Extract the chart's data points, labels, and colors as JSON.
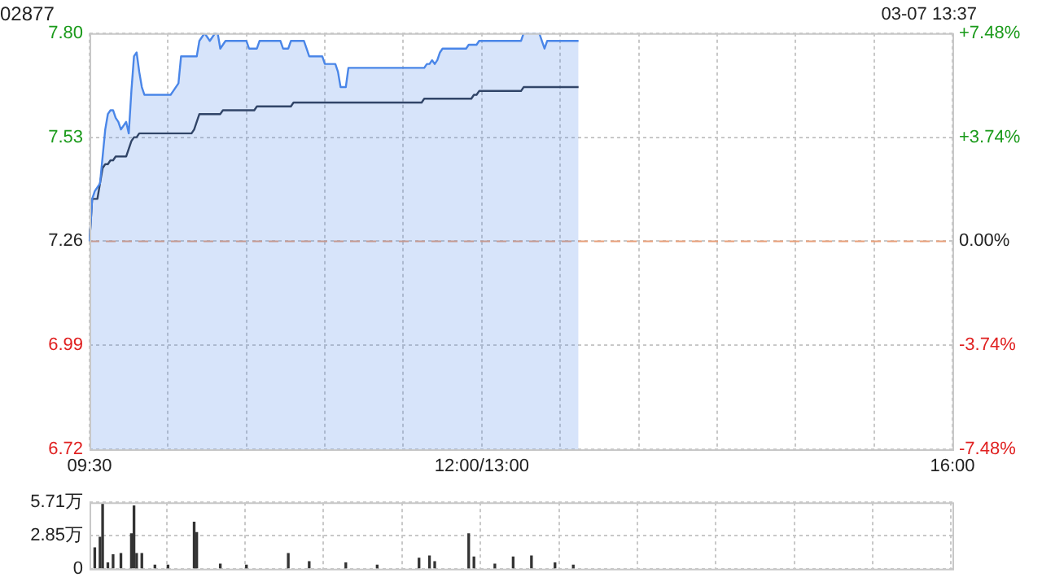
{
  "chart_data": [
    {
      "type": "area",
      "title": "02877",
      "annotations": [
        "03-07 13:37"
      ],
      "categories": [
        "09:30",
        null,
        null,
        null,
        null,
        null,
        null,
        null,
        null,
        null,
        null,
        null,
        null,
        null,
        null,
        null,
        null,
        null,
        null,
        null,
        null,
        null,
        null,
        null,
        null,
        null,
        null,
        null,
        null,
        null,
        null,
        null,
        null,
        null,
        null,
        null,
        null,
        null,
        null,
        null,
        null,
        null,
        null,
        null,
        null,
        null,
        null,
        null,
        null,
        null,
        null,
        null,
        null,
        null,
        null,
        null,
        null,
        null,
        null,
        null,
        null,
        null,
        null,
        null,
        null,
        null,
        null,
        null,
        null,
        null,
        null,
        null,
        null,
        null,
        null,
        null,
        null,
        null,
        null,
        null,
        null,
        null,
        null,
        null,
        null,
        null,
        null,
        null,
        null,
        null,
        null,
        null,
        null,
        null,
        null,
        null,
        null,
        null,
        null,
        null,
        null,
        null,
        null,
        null,
        null,
        null,
        null,
        null,
        null,
        null,
        null,
        null,
        null,
        null,
        null,
        null,
        null,
        null,
        null,
        null,
        null,
        null,
        null,
        null,
        null,
        null,
        null,
        null,
        null,
        null,
        null,
        null,
        null,
        null,
        null,
        null,
        null,
        null,
        null,
        null,
        null,
        null,
        null,
        null,
        null,
        null,
        null,
        null,
        null,
        null,
        "12:00/13:00",
        null,
        null,
        null,
        null,
        null,
        null,
        null,
        null,
        null,
        null,
        null,
        null,
        null,
        null,
        null,
        null,
        null,
        null,
        null,
        null,
        null,
        null,
        null,
        null,
        null,
        null,
        null,
        null,
        null,
        null,
        null,
        null,
        null,
        null,
        null,
        null,
        null,
        null,
        null,
        null,
        null,
        null,
        null,
        null,
        null,
        null,
        null,
        null,
        null,
        null,
        null,
        null,
        null,
        null,
        null,
        null,
        null,
        null,
        null,
        null,
        null,
        null,
        null,
        null,
        null,
        null,
        null,
        null,
        null,
        null,
        null,
        null,
        null,
        null,
        null,
        null,
        null,
        null,
        null,
        null,
        null,
        null,
        null,
        null,
        null,
        null,
        null,
        null,
        null,
        null,
        null,
        null,
        null,
        null,
        null,
        null,
        null,
        null,
        null,
        null,
        null,
        null,
        null,
        null,
        null,
        null,
        null,
        null,
        null,
        null,
        null,
        null,
        null,
        null,
        null,
        null,
        null,
        null,
        null,
        null,
        null,
        null,
        null,
        null,
        null,
        null,
        null,
        null,
        null,
        null,
        null,
        null,
        null,
        null,
        null,
        null,
        null,
        null,
        null,
        null,
        null,
        null,
        null,
        null,
        null,
        null,
        null,
        null,
        null,
        null,
        null,
        null,
        null,
        null,
        null,
        null,
        null,
        null,
        null,
        null,
        null,
        null,
        null,
        null,
        null,
        null,
        null,
        null,
        null,
        null,
        null,
        null,
        null,
        null,
        null,
        null,
        null,
        null,
        null,
        "16:00"
      ],
      "ylim": [
        6.72,
        7.8
      ],
      "yticks": [
        6.72,
        6.99,
        7.26,
        7.53,
        {
          "value": 7.8,
          "label": "7.80"
        }
      ],
      "y2lim": [
        -7.48,
        7.48
      ],
      "y2ticks": [
        {
          "value": -7.48,
          "label": "-7.48%"
        },
        {
          "value": -3.74,
          "label": "-3.74%"
        },
        {
          "value": 0,
          "label": "0.00%"
        },
        {
          "value": 3.74,
          "label": "+3.74%"
        },
        {
          "value": 7.48,
          "label": "+7.48%"
        }
      ],
      "grid": true,
      "legend": false,
      "marker": "none",
      "ref_lines": [
        {
          "axis": "y",
          "value": 7.26,
          "color": "#e8a07a",
          "line_style": "dashed"
        }
      ],
      "series": [
        {
          "color": "#4a86e8",
          "values": [
            7.26,
            7.37,
            7.39,
            7.4,
            7.41,
            7.48,
            7.55,
            7.59,
            7.6,
            7.6,
            7.58,
            7.57,
            7.55,
            7.56,
            7.57,
            7.54,
            7.65,
            7.74,
            7.75,
            7.7,
            7.66,
            7.64,
            7.64,
            7.64,
            7.64,
            7.64,
            7.64,
            7.64,
            7.64,
            7.64,
            7.64,
            7.64,
            7.65,
            7.66,
            7.67,
            7.74,
            7.74,
            7.74,
            7.74,
            7.74,
            7.74,
            7.74,
            7.78,
            7.79,
            7.8,
            7.79,
            7.78,
            7.79,
            7.8,
            7.8,
            7.76,
            7.77,
            7.78,
            7.78,
            7.78,
            7.78,
            7.78,
            7.78,
            7.78,
            7.78,
            7.78,
            7.76,
            7.76,
            7.76,
            7.76,
            7.78,
            7.78,
            7.78,
            7.78,
            7.78,
            7.78,
            7.78,
            7.78,
            7.78,
            7.76,
            7.76,
            7.76,
            7.78,
            7.78,
            7.78,
            7.78,
            7.78,
            7.78,
            7.76,
            7.74,
            7.74,
            7.74,
            7.74,
            7.74,
            7.74,
            7.72,
            7.72,
            7.72,
            7.72,
            7.72,
            7.7,
            7.66,
            7.66,
            7.66,
            7.71,
            7.71,
            7.71,
            7.71,
            7.71,
            7.71,
            7.71,
            7.71,
            7.71,
            7.71,
            7.71,
            7.71,
            7.71,
            7.71,
            7.71,
            7.71,
            7.71,
            7.71,
            7.71,
            7.71,
            7.71,
            7.71,
            7.71,
            7.71,
            7.71,
            7.71,
            7.71,
            7.71,
            7.71,
            7.71,
            7.72,
            7.72,
            7.73,
            7.72,
            7.73,
            7.75,
            7.76,
            7.76,
            7.76,
            7.76,
            7.76,
            7.76,
            7.76,
            7.76,
            7.76,
            7.76,
            7.77,
            7.77,
            7.77,
            7.77,
            7.78,
            7.78,
            7.78,
            7.78,
            7.78,
            7.78,
            7.78,
            7.78,
            7.78,
            7.78,
            7.78,
            7.78,
            7.78,
            7.78,
            7.78,
            7.78,
            7.78,
            7.8,
            7.8,
            7.8,
            7.8,
            7.8,
            7.8,
            7.8,
            7.78,
            7.76,
            7.78,
            7.78,
            7.78,
            7.78,
            7.78,
            7.78,
            7.78,
            7.78,
            7.78,
            7.78,
            7.78,
            7.78,
            7.78,
            null,
            null,
            null,
            null,
            null,
            null,
            null,
            null,
            null,
            null,
            null,
            null,
            null,
            null,
            null,
            null,
            null,
            null,
            null,
            null,
            null,
            null,
            null,
            null,
            null,
            null,
            null,
            null,
            null,
            null,
            null,
            null,
            null,
            null,
            null,
            null,
            null,
            null,
            null,
            null,
            null,
            null,
            null,
            null,
            null,
            null,
            null,
            null,
            null,
            null,
            null,
            null,
            null,
            null,
            null,
            null,
            null,
            null,
            null,
            null,
            null,
            null,
            null,
            null,
            null,
            null,
            null,
            null,
            null,
            null,
            null,
            null,
            null,
            null,
            null,
            null,
            null,
            null,
            null,
            null,
            null,
            null,
            null,
            null,
            null,
            null,
            null,
            null,
            null,
            null,
            null,
            null,
            null,
            null,
            null,
            null,
            null,
            null,
            null,
            null,
            null,
            null,
            null,
            null,
            null,
            null,
            null,
            null,
            null,
            null,
            null,
            null,
            null,
            null,
            null,
            null,
            null,
            null,
            null,
            null,
            null,
            null,
            null,
            null,
            null,
            null,
            null,
            null,
            null,
            null,
            null,
            null,
            null,
            null,
            null,
            null,
            null,
            null,
            null,
            null,
            null,
            null,
            null
          ]
        },
        {
          "type": "line",
          "color": "#2b3445",
          "values": [
            7.26,
            7.37,
            7.37,
            7.37,
            7.41,
            7.45,
            7.46,
            7.46,
            7.47,
            7.47,
            7.48,
            7.48,
            7.48,
            7.48,
            7.48,
            7.5,
            7.52,
            7.53,
            7.53,
            7.54,
            7.54,
            7.54,
            7.54,
            7.54,
            7.54,
            7.54,
            7.54,
            7.54,
            7.54,
            7.54,
            7.54,
            7.54,
            7.54,
            7.54,
            7.54,
            7.54,
            7.54,
            7.54,
            7.54,
            7.54,
            7.55,
            7.57,
            7.59,
            7.59,
            7.59,
            7.59,
            7.59,
            7.59,
            7.59,
            7.59,
            7.59,
            7.6,
            7.6,
            7.6,
            7.6,
            7.6,
            7.6,
            7.6,
            7.6,
            7.6,
            7.6,
            7.6,
            7.6,
            7.6,
            7.61,
            7.61,
            7.61,
            7.61,
            7.61,
            7.61,
            7.61,
            7.61,
            7.61,
            7.61,
            7.61,
            7.61,
            7.61,
            7.61,
            7.62,
            7.62,
            7.62,
            7.62,
            7.62,
            7.62,
            7.62,
            7.62,
            7.62,
            7.62,
            7.62,
            7.62,
            7.62,
            7.62,
            7.62,
            7.62,
            7.62,
            7.62,
            7.62,
            7.62,
            7.62,
            7.62,
            7.62,
            7.62,
            7.62,
            7.62,
            7.62,
            7.62,
            7.62,
            7.62,
            7.62,
            7.62,
            7.62,
            7.62,
            7.62,
            7.62,
            7.62,
            7.62,
            7.62,
            7.62,
            7.62,
            7.62,
            7.62,
            7.62,
            7.62,
            7.62,
            7.62,
            7.62,
            7.62,
            7.62,
            7.63,
            7.63,
            7.63,
            7.63,
            7.63,
            7.63,
            7.63,
            7.63,
            7.63,
            7.63,
            7.63,
            7.63,
            7.63,
            7.63,
            7.63,
            7.63,
            7.63,
            7.63,
            7.63,
            7.64,
            7.64,
            7.65,
            7.65,
            7.65,
            7.65,
            7.65,
            7.65,
            7.65,
            7.65,
            7.65,
            7.65,
            7.65,
            7.65,
            7.65,
            7.65,
            7.65,
            7.65,
            7.65,
            7.66,
            7.66,
            7.66,
            7.66,
            7.66,
            7.66,
            7.66,
            7.66,
            7.66,
            7.66,
            7.66,
            7.66,
            7.66,
            7.66,
            7.66,
            7.66,
            7.66,
            7.66,
            7.66,
            7.66,
            7.66,
            7.66,
            null,
            null,
            null,
            null,
            null,
            null,
            null,
            null,
            null,
            null,
            null,
            null,
            null,
            null,
            null,
            null,
            null,
            null,
            null,
            null,
            null,
            null,
            null,
            null,
            null,
            null,
            null,
            null,
            null,
            null,
            null,
            null,
            null,
            null,
            null,
            null,
            null,
            null,
            null,
            null,
            null,
            null,
            null,
            null,
            null,
            null,
            null,
            null,
            null,
            null,
            null,
            null,
            null,
            null,
            null,
            null,
            null,
            null,
            null,
            null,
            null,
            null,
            null,
            null,
            null,
            null,
            null,
            null,
            null,
            null,
            null,
            null,
            null,
            null,
            null,
            null,
            null,
            null,
            null,
            null,
            null,
            null,
            null,
            null,
            null,
            null,
            null,
            null,
            null,
            null,
            null,
            null,
            null,
            null,
            null,
            null,
            null,
            null,
            null,
            null,
            null,
            null,
            null,
            null,
            null,
            null,
            null,
            null,
            null,
            null,
            null,
            null,
            null,
            null,
            null,
            null,
            null,
            null,
            null,
            null,
            null,
            null,
            null,
            null,
            null,
            null,
            null,
            null,
            null,
            null,
            null,
            null,
            null,
            null,
            null,
            null,
            null,
            null,
            null,
            null,
            null,
            null,
            null
          ]
        }
      ]
    },
    {
      "type": "bar",
      "color": "#333333",
      "tick_labels": "y",
      "grid": true,
      "legend": false,
      "categories": [
        null,
        null,
        null,
        null,
        null,
        null,
        null,
        null,
        null,
        null,
        null,
        null,
        null,
        null,
        null,
        null,
        null,
        null,
        null,
        null,
        null,
        null,
        null,
        null,
        null,
        null,
        null,
        null,
        null,
        null,
        null,
        null,
        null,
        null,
        null,
        null,
        null,
        null,
        null,
        null,
        null,
        null,
        null,
        null,
        null,
        null,
        null,
        null,
        null,
        null,
        null,
        null,
        null,
        null,
        null,
        null,
        null,
        null,
        null,
        null,
        null,
        null,
        null,
        null,
        null,
        null,
        null,
        null,
        null,
        null,
        null,
        null,
        null,
        null,
        null,
        null,
        null,
        null,
        null,
        null,
        null,
        null,
        null,
        null,
        null,
        null,
        null,
        null,
        null,
        null,
        null,
        null,
        null,
        null,
        null,
        null,
        null,
        null,
        null,
        null,
        null,
        null,
        null,
        null,
        null,
        null,
        null,
        null,
        null,
        null,
        null,
        null,
        null,
        null,
        null,
        null,
        null,
        null,
        null,
        null,
        null,
        null,
        null,
        null,
        null,
        null,
        null,
        null,
        null,
        null,
        null,
        null,
        null,
        null,
        null,
        null,
        null,
        null,
        null,
        null,
        null,
        null,
        null,
        null,
        null,
        null,
        null,
        null,
        null,
        null,
        null,
        null,
        null,
        null,
        null,
        null,
        null,
        null,
        null,
        null,
        null,
        null,
        null,
        null,
        null,
        null,
        null,
        null,
        null,
        null,
        null,
        null,
        null,
        null,
        null,
        null,
        null,
        null,
        null,
        null,
        null,
        null,
        null,
        null,
        null,
        null,
        null,
        null,
        null,
        null,
        null,
        null,
        null,
        null,
        null,
        null,
        null,
        null,
        null,
        null,
        null,
        null,
        null,
        null,
        null,
        null,
        null,
        null,
        null,
        null,
        null,
        null,
        null,
        null,
        null,
        null,
        null,
        null,
        null,
        null,
        null,
        null,
        null,
        null,
        null,
        null,
        null,
        null,
        null,
        null,
        null,
        null,
        null,
        null,
        null,
        null,
        null,
        null,
        null,
        null,
        null,
        null,
        null,
        null,
        null,
        null,
        null,
        null,
        null,
        null,
        null,
        null,
        null,
        null,
        null,
        null,
        null,
        null,
        null,
        null,
        null,
        null,
        null,
        null,
        null,
        null,
        null,
        null,
        null,
        null,
        null,
        null,
        null,
        null,
        null,
        null,
        null,
        null,
        null,
        null,
        null,
        null,
        null,
        null,
        null,
        null,
        null,
        null,
        null,
        null,
        null,
        null,
        null,
        null,
        null,
        null,
        null,
        null,
        null,
        null,
        null,
        null,
        null,
        null,
        null,
        null,
        null,
        null,
        null,
        null,
        null,
        null,
        null,
        null,
        null,
        null,
        null,
        null,
        null,
        null,
        null,
        null,
        null,
        null,
        null,
        null,
        null,
        null,
        null,
        null,
        null
      ],
      "ylim": [
        0,
        5.71
      ],
      "yticks": [
        0,
        {
          "value": 2.85,
          "label": "2.85万"
        },
        {
          "value": 5.71,
          "label": "5.71万"
        }
      ],
      "values": [
        null,
        null,
        1.8,
        null,
        2.7,
        5.6,
        null,
        0.5,
        null,
        1.2,
        null,
        null,
        1.3,
        null,
        null,
        null,
        3,
        5.4,
        1.3,
        null,
        1.3,
        null,
        null,
        null,
        null,
        0.3,
        null,
        null,
        null,
        null,
        0.3,
        null,
        null,
        null,
        null,
        null,
        null,
        null,
        null,
        null,
        4,
        3.1,
        null,
        null,
        null,
        null,
        null,
        null,
        null,
        null,
        0.4,
        null,
        null,
        null,
        null,
        null,
        null,
        null,
        null,
        null,
        0.3,
        null,
        null,
        null,
        null,
        null,
        null,
        null,
        null,
        null,
        null,
        null,
        null,
        null,
        null,
        null,
        1.3,
        null,
        null,
        null,
        null,
        null,
        null,
        null,
        0.6,
        null,
        null,
        null,
        null,
        null,
        null,
        null,
        null,
        null,
        null,
        null,
        null,
        null,
        0.5,
        null,
        null,
        null,
        null,
        null,
        null,
        null,
        null,
        null,
        null,
        null,
        0.3,
        null,
        null,
        null,
        null,
        null,
        null,
        null,
        null,
        null,
        null,
        null,
        null,
        null,
        null,
        null,
        0.9,
        null,
        null,
        null,
        1.1,
        null,
        0.6,
        null,
        null,
        null,
        null,
        null,
        null,
        null,
        null,
        null,
        null,
        null,
        null,
        3,
        null,
        1,
        null,
        null,
        null,
        null,
        null,
        null,
        null,
        0.4,
        null,
        null,
        null,
        null,
        null,
        null,
        1,
        null,
        null,
        null,
        null,
        null,
        null,
        1.1,
        null,
        null,
        null,
        null,
        null,
        null,
        null,
        null,
        0.5,
        null,
        null,
        null,
        null,
        null,
        null,
        0.3,
        null,
        null,
        null,
        null,
        null,
        null,
        null,
        null,
        null,
        null,
        null,
        null,
        null,
        null,
        null,
        null,
        null,
        null,
        null,
        null,
        null,
        null,
        null,
        null,
        null,
        null,
        null,
        null,
        null,
        null,
        null,
        null,
        null,
        null,
        null,
        null,
        null,
        null,
        null,
        null,
        null,
        null,
        null,
        null,
        null,
        null,
        null,
        null,
        null,
        null,
        null,
        null,
        null,
        null,
        null,
        null,
        null,
        null,
        null,
        null,
        null,
        null,
        null,
        null,
        null,
        null,
        null,
        null,
        null,
        null,
        null,
        null,
        null,
        null,
        null,
        null,
        null,
        null,
        null,
        null,
        null,
        null,
        null,
        null,
        null,
        null,
        null,
        null,
        null,
        null,
        null,
        null,
        null,
        null,
        null,
        null,
        null,
        null,
        null,
        null,
        null,
        null,
        null,
        null,
        null,
        null,
        null,
        null,
        null,
        null,
        null,
        null,
        null,
        null,
        null,
        null,
        null,
        null,
        null,
        null,
        null,
        null,
        null,
        null,
        null,
        null,
        null,
        null,
        null,
        null,
        null,
        null,
        null,
        null,
        null,
        null,
        null,
        null,
        null,
        null,
        null,
        null,
        null,
        null,
        null
      ]
    }
  ]
}
